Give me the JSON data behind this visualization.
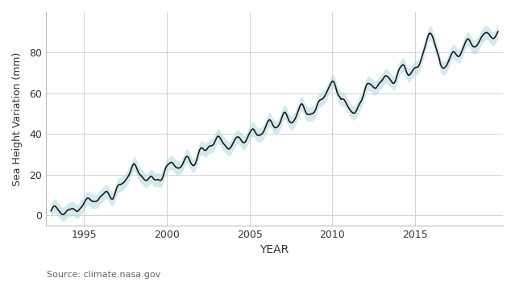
{
  "title": "",
  "xlabel": "YEAR",
  "ylabel": "Sea Height Variation (mm)",
  "source_text": "Source: climate.nasa.gov",
  "x_start": 1993.0,
  "x_end": 2020.0,
  "ylim": [
    -5,
    100
  ],
  "xlim": [
    1992.7,
    2020.3
  ],
  "xticks": [
    1995,
    2000,
    2005,
    2010,
    2015
  ],
  "yticks": [
    0,
    20,
    40,
    60,
    80
  ],
  "line_color": "#1a1a1a",
  "band_color": "#b0d8e0",
  "band_alpha": 0.55,
  "background_color": "#ffffff",
  "grid_color": "#cccccc",
  "grid_alpha": 1.0,
  "xlabel_fontsize": 10,
  "ylabel_fontsize": 9,
  "tick_fontsize": 9,
  "source_fontsize": 8,
  "line_width": 1.2,
  "band_halfwidth": 3.5
}
